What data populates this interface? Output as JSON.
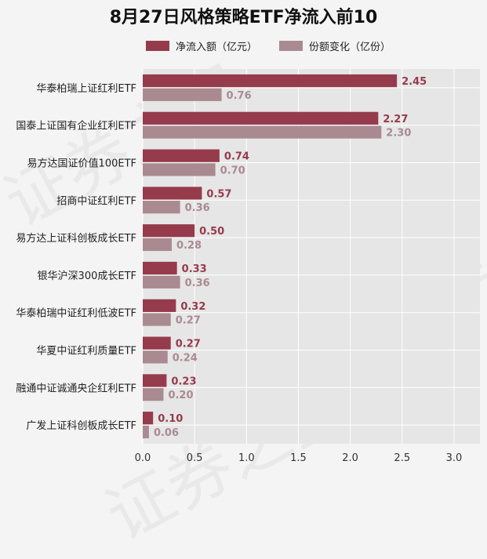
{
  "chart_data": {
    "type": "bar",
    "orientation": "horizontal",
    "title": "8月27日风格策略ETF净流入前10",
    "xlabel": "",
    "ylabel": "",
    "xlim": [
      0,
      3.25
    ],
    "xticks": [
      0.0,
      0.5,
      1.0,
      1.5,
      2.0,
      2.5,
      3.0
    ],
    "xtick_labels": [
      "0.0",
      "0.5",
      "1.0",
      "1.5",
      "2.0",
      "2.5",
      "3.0"
    ],
    "grid": true,
    "legend_position": "top-center",
    "categories": [
      "华泰柏瑞上证红利ETF",
      "国泰上证国有企业红利ETF",
      "易方达国证价值100ETF",
      "招商中证红利ETF",
      "易方达上证科创板成长ETF",
      "银华沪深300成长ETF",
      "华泰柏瑞中证红利低波ETF",
      "华夏中证红利质量ETF",
      "融通中证诚通央企红利ETF",
      "广发上证科创板成长ETF"
    ],
    "series": [
      {
        "name": "净流入额（亿元）",
        "color": "#963b4c",
        "values": [
          2.45,
          2.27,
          0.74,
          0.57,
          0.5,
          0.33,
          0.32,
          0.27,
          0.23,
          0.1
        ],
        "labels": [
          "2.45",
          "2.27",
          "0.74",
          "0.57",
          "0.50",
          "0.33",
          "0.32",
          "0.27",
          "0.23",
          "0.10"
        ]
      },
      {
        "name": "份额变化（亿份）",
        "color": "#aa8a91",
        "values": [
          0.76,
          2.3,
          0.7,
          0.36,
          0.28,
          0.36,
          0.27,
          0.24,
          0.2,
          0.06
        ],
        "labels": [
          "0.76",
          "2.30",
          "0.70",
          "0.36",
          "0.28",
          "0.36",
          "0.27",
          "0.24",
          "0.20",
          "0.06"
        ]
      }
    ]
  },
  "watermark": "证券之星"
}
